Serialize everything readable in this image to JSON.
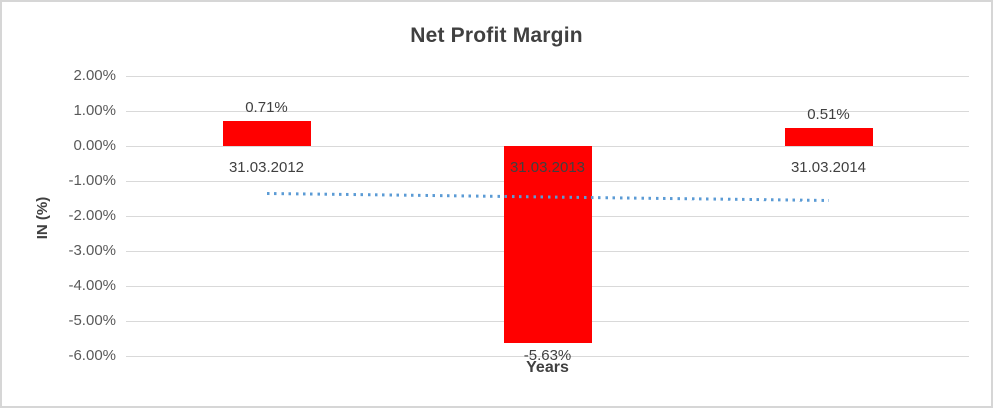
{
  "chart_data": {
    "type": "bar",
    "title": "Net Profit Margin",
    "xlabel": "Years",
    "ylabel": "IN (%)",
    "categories": [
      "31.03.2012",
      "31.03.2013",
      "31.03.2014"
    ],
    "series": [
      {
        "name": "Net Profit Margin",
        "values": [
          0.71,
          -5.63,
          0.51
        ],
        "value_labels": [
          "0.71%",
          "-5.63%",
          "0.51%"
        ],
        "color": "#ff0000"
      }
    ],
    "ylim": [
      -6,
      2
    ],
    "y_ticks": [
      {
        "value": 2,
        "label": "2.00%"
      },
      {
        "value": 1,
        "label": "1.00%"
      },
      {
        "value": 0,
        "label": "0.00%"
      },
      {
        "value": -1,
        "label": "-1.00%"
      },
      {
        "value": -2,
        "label": "-2.00%"
      },
      {
        "value": -3,
        "label": "-3.00%"
      },
      {
        "value": -4,
        "label": "-4.00%"
      },
      {
        "value": -5,
        "label": "-5.00%"
      },
      {
        "value": -6,
        "label": "-6.00%"
      }
    ],
    "grid": true,
    "legend": "none",
    "trendline": {
      "type": "linear",
      "style": "dotted",
      "color": "#5b9bd5",
      "start_value": -1.37,
      "end_value": -1.57
    }
  },
  "colors": {
    "bar": "#ff0000",
    "gridline": "#d9d9d9",
    "title_text": "#404040",
    "axis_text": "#595959",
    "trendline": "#5b9bd5",
    "border": "#d6d6d6",
    "background": "#ffffff"
  }
}
